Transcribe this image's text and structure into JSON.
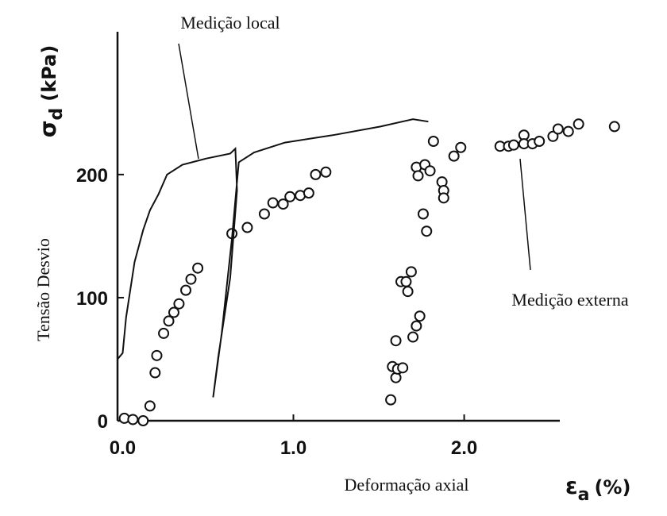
{
  "chart_data": {
    "type": "scatter",
    "xlim": [
      -0.03,
      2.56
    ],
    "ylim": [
      0,
      316
    ],
    "xticks": [
      {
        "value": 0,
        "label": "0.0"
      },
      {
        "value": 1,
        "label": "1.0"
      },
      {
        "value": 2,
        "label": "2.0"
      }
    ],
    "yticks": [
      0,
      100,
      200
    ],
    "y_label_symbol": "σ",
    "y_label_subscript": "d",
    "y_label_unit": "(kPa)",
    "y_label": "Tensão Desvio",
    "x_label": "Deformação axial",
    "x_label_symbol": "ε",
    "x_label_subscript": "a",
    "x_label_unit": "(%)",
    "series": [
      {
        "name": "Medição externa",
        "type": "scatter",
        "color": "#111111",
        "x": [
          0.01,
          0.06,
          0.12,
          0.16,
          0.19,
          0.2,
          0.24,
          0.27,
          0.3,
          0.33,
          0.37,
          0.4,
          0.44,
          0.64,
          0.73,
          0.83,
          0.88,
          0.94,
          0.98,
          1.04,
          1.09,
          1.13,
          1.19,
          1.57,
          1.58,
          1.6,
          1.61,
          1.64,
          1.6,
          1.63,
          1.66,
          1.69,
          1.67,
          1.7,
          1.72,
          1.74,
          1.72,
          1.73,
          1.77,
          1.76,
          1.78,
          1.8,
          1.82,
          1.87,
          1.88,
          1.88,
          1.94,
          1.98,
          2.21,
          2.26,
          2.29,
          2.35,
          2.35,
          2.4,
          2.44,
          2.52,
          2.55,
          2.61,
          2.67,
          2.88
        ],
        "values": [
          2,
          1,
          0,
          12,
          39,
          53,
          71,
          81,
          88,
          95,
          106,
          115,
          124,
          152,
          157,
          168,
          177,
          176,
          182,
          183,
          185,
          200,
          202,
          17,
          44,
          35,
          42,
          43,
          65,
          113,
          113,
          121,
          105,
          68,
          77,
          85,
          206,
          199,
          208,
          168,
          154,
          203,
          227,
          194,
          187,
          181,
          215,
          222,
          223,
          223,
          224,
          232,
          225,
          225,
          227,
          231,
          237,
          235,
          241,
          239
        ]
      },
      {
        "name": "Medição local",
        "type": "line",
        "color": "#111111",
        "x": [
          -0.03,
          0,
          0.02,
          0.07,
          0.12,
          0.16,
          0.21,
          0.26,
          0.35,
          0.49,
          0.63,
          0.66,
          0.67,
          0.63,
          0.56,
          0.53,
          0.58,
          0.64,
          0.68,
          0.77,
          0.95,
          1.23,
          1.51,
          1.7,
          1.79
        ],
        "values": [
          50,
          55,
          84,
          129,
          155,
          171,
          184,
          200,
          208,
          213,
          217,
          221,
          187,
          116,
          52,
          19,
          71,
          148,
          210,
          218,
          226,
          232,
          239,
          245,
          243
        ]
      }
    ]
  }
}
